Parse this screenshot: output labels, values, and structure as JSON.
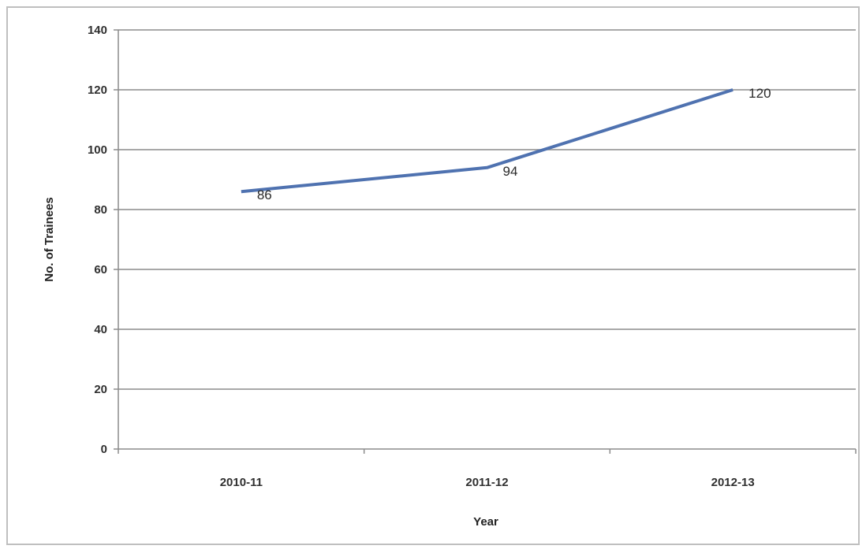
{
  "chart_data": {
    "type": "line",
    "title": "",
    "xlabel": "Year",
    "ylabel": "No. of Trainees",
    "categories": [
      "2010-11",
      "2011-12",
      "2012-13"
    ],
    "series": [
      {
        "values": [
          86,
          94,
          120
        ],
        "data_labels": [
          "86",
          "94",
          "120"
        ]
      }
    ],
    "ylim": [
      0,
      140
    ],
    "yticks": [
      "0",
      "20",
      "40",
      "60",
      "80",
      "100",
      "120",
      "140"
    ],
    "grid": true,
    "legend": "none",
    "colors": {
      "line": "#4f72b0",
      "grid": "#8c8c8c",
      "axis": "#8c8c8c"
    }
  }
}
